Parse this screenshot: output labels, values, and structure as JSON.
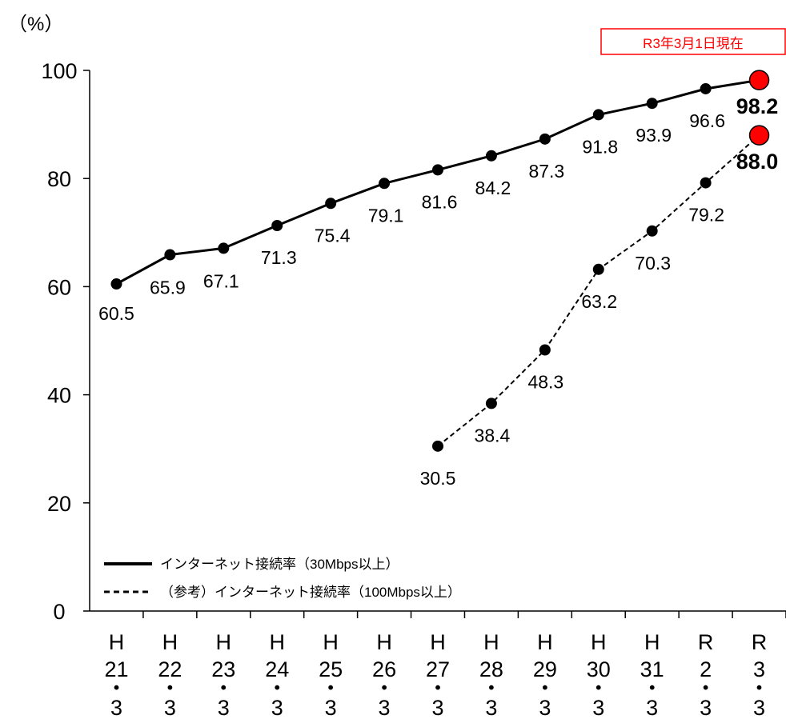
{
  "chart_data": {
    "type": "line",
    "unit": "（%）",
    "note": "R3年3月1日現在",
    "ylim": [
      0,
      100
    ],
    "yticks": [
      0,
      20,
      40,
      60,
      80,
      100
    ],
    "grid": false,
    "legend_position": "bottom-left",
    "categories": [
      [
        "H",
        "21",
        "・",
        "3"
      ],
      [
        "H",
        "22",
        "・",
        "3"
      ],
      [
        "H",
        "23",
        "・",
        "3"
      ],
      [
        "H",
        "24",
        "・",
        "3"
      ],
      [
        "H",
        "25",
        "・",
        "3"
      ],
      [
        "H",
        "26",
        "・",
        "3"
      ],
      [
        "H",
        "27",
        "・",
        "3"
      ],
      [
        "H",
        "28",
        "・",
        "3"
      ],
      [
        "H",
        "29",
        "・",
        "3"
      ],
      [
        "H",
        "30",
        "・",
        "3"
      ],
      [
        "H",
        "31",
        "・",
        "3"
      ],
      [
        "R",
        "2",
        "・",
        "3"
      ],
      [
        "R",
        "3",
        "・",
        "3"
      ]
    ],
    "series": [
      {
        "name": "インターネット接続率（30Mbps以上）",
        "line_style": "solid",
        "values": [
          60.5,
          65.9,
          67.1,
          71.3,
          75.4,
          79.1,
          81.6,
          84.2,
          87.3,
          91.8,
          93.9,
          96.6,
          98.2
        ],
        "labels": [
          "60.5",
          "65.9",
          "67.1",
          "71.3",
          "75.4",
          "79.1",
          "81.6",
          "84.2",
          "87.3",
          "91.8",
          "93.9",
          "96.6",
          "98.2"
        ]
      },
      {
        "name": "（参考）インターネット接続率（100Mbps以上）",
        "line_style": "dashed",
        "values": [
          null,
          null,
          null,
          null,
          null,
          null,
          30.5,
          38.4,
          48.3,
          63.2,
          70.3,
          79.2,
          88.0
        ],
        "labels": [
          null,
          null,
          null,
          null,
          null,
          null,
          "30.5",
          "38.4",
          "48.3",
          "63.2",
          "70.3",
          "79.2",
          "88.0"
        ]
      }
    ],
    "colors": {
      "marker": "#000000",
      "highlight_marker": "#ff0000",
      "note_border": "#ff0000",
      "note_text": "#ff0000"
    }
  }
}
